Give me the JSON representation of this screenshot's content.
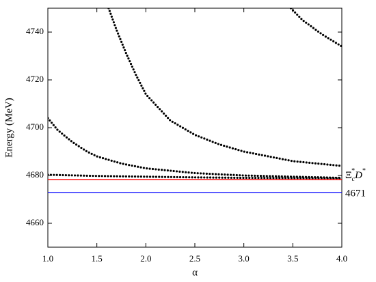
{
  "chart_data": {
    "type": "line",
    "y_label": "Energy (MeV)",
    "x_label": "α",
    "xlim": [
      1.0,
      4.0
    ],
    "ylim": [
      4650,
      4750
    ],
    "xticks": [
      {
        "value": 1.0,
        "label": "1.0"
      },
      1.5,
      {
        "value": 2.0,
        "label": "2.0"
      },
      2.5,
      {
        "value": 3.0,
        "label": "3.0"
      },
      3.5,
      {
        "value": 4.0,
        "label": "4.0"
      }
    ],
    "yticks": [
      4660,
      4680,
      4700,
      4720,
      4740
    ],
    "series": [
      {
        "color": "#000000",
        "style": "dotted",
        "x": [
          1.0,
          1.1,
          1.25,
          1.4,
          1.5,
          1.75,
          2.0,
          2.25,
          2.5,
          3.0,
          3.5,
          4.0
        ],
        "values": [
          4704,
          4699,
          4694,
          4690,
          4688,
          4685,
          4683,
          4682,
          4681,
          4680,
          4679.5,
          4679
        ]
      },
      {
        "color": "#000000",
        "style": "dotted",
        "x": [
          1.0,
          1.5,
          2.0,
          2.5,
          3.0,
          3.5,
          4.0
        ],
        "values": [
          4680.3,
          4679.8,
          4679.5,
          4679.2,
          4679,
          4678.9,
          4678.8
        ]
      },
      {
        "color": "#000000",
        "style": "dotted",
        "x": [
          1.62,
          1.7,
          1.8,
          1.9,
          2.0,
          2.25,
          2.5,
          2.75,
          3.0,
          3.5,
          4.0
        ],
        "values": [
          4750,
          4741,
          4731,
          4722,
          4714,
          4703,
          4697,
          4693,
          4690,
          4686,
          4684
        ]
      },
      {
        "color": "#000000",
        "style": "dotted",
        "x": [
          3.48,
          3.6,
          3.8,
          4.0
        ],
        "values": [
          4750,
          4745,
          4739,
          4734
        ]
      },
      {
        "color": "#ff0000",
        "style": "solid",
        "x": [
          1.0,
          4.0
        ],
        "values": [
          4678.3,
          4678.3
        ]
      },
      {
        "color": "#0000ff",
        "style": "solid",
        "x": [
          1.0,
          4.0
        ],
        "values": [
          4672.9,
          4672.9
        ]
      }
    ],
    "threshold_label": {
      "base": "Ξ",
      "sub": "c",
      "sup": "*",
      "base2": "D",
      "sup2": "*"
    },
    "binding_label": "4671"
  }
}
